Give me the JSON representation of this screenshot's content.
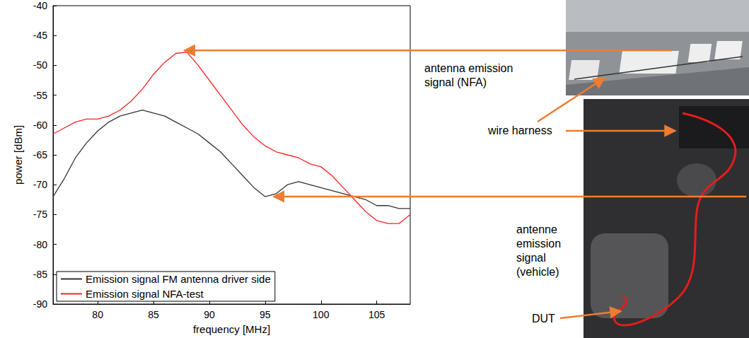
{
  "chart_data": {
    "type": "line",
    "xlabel": "frequency [MHz]",
    "ylabel": "power [dBm]",
    "x": [
      76,
      77,
      78,
      79,
      80,
      81,
      82,
      83,
      84,
      85,
      86,
      87,
      88,
      89,
      90,
      91,
      92,
      93,
      94,
      95,
      96,
      97,
      98,
      99,
      100,
      101,
      102,
      103,
      104,
      105,
      106,
      107,
      108
    ],
    "xlim": [
      76,
      108
    ],
    "xticks": [
      80,
      85,
      90,
      95,
      100,
      105
    ],
    "ylim": [
      -90,
      -40
    ],
    "yticks": [
      -90,
      -85,
      -80,
      -75,
      -70,
      -65,
      -60,
      -55,
      -50,
      -45,
      -40
    ],
    "grid": false,
    "legend": "lower left",
    "series": [
      {
        "name": "Emission signal FM antenna driver side",
        "color": "#333333",
        "values": [
          -72,
          -69,
          -65.5,
          -63,
          -61,
          -59.5,
          -58.5,
          -58,
          -57.5,
          -58,
          -58.5,
          -59.5,
          -60.5,
          -61.5,
          -63,
          -64.5,
          -66.5,
          -68.5,
          -70.5,
          -72,
          -71.5,
          -70,
          -69.5,
          -70,
          -70.5,
          -71,
          -71.5,
          -72,
          -72.5,
          -73.5,
          -73.5,
          -74,
          -74
        ]
      },
      {
        "name": "Emission signal NFA-test",
        "color": "#ff2020",
        "values": [
          -61.5,
          -60.5,
          -59.5,
          -59,
          -59,
          -58.5,
          -57.5,
          -56,
          -54,
          -51.5,
          -49.5,
          -48,
          -47.8,
          -50,
          -52.5,
          -55,
          -57.5,
          -60,
          -62,
          -63.5,
          -64.5,
          -65,
          -65.5,
          -66.5,
          -67,
          -68.5,
          -70.5,
          -72.5,
          -74.5,
          -76,
          -76.5,
          -76.5,
          -75
        ]
      }
    ],
    "annotations": [
      {
        "text": "antenna emission signal (NFA)",
        "x": 87.5,
        "y": -47.5
      },
      {
        "text": "wire harness"
      },
      {
        "text": "antenne emission signal (vehicle)",
        "x": 95.5,
        "y": -72
      },
      {
        "text": "DUT"
      }
    ]
  }
}
